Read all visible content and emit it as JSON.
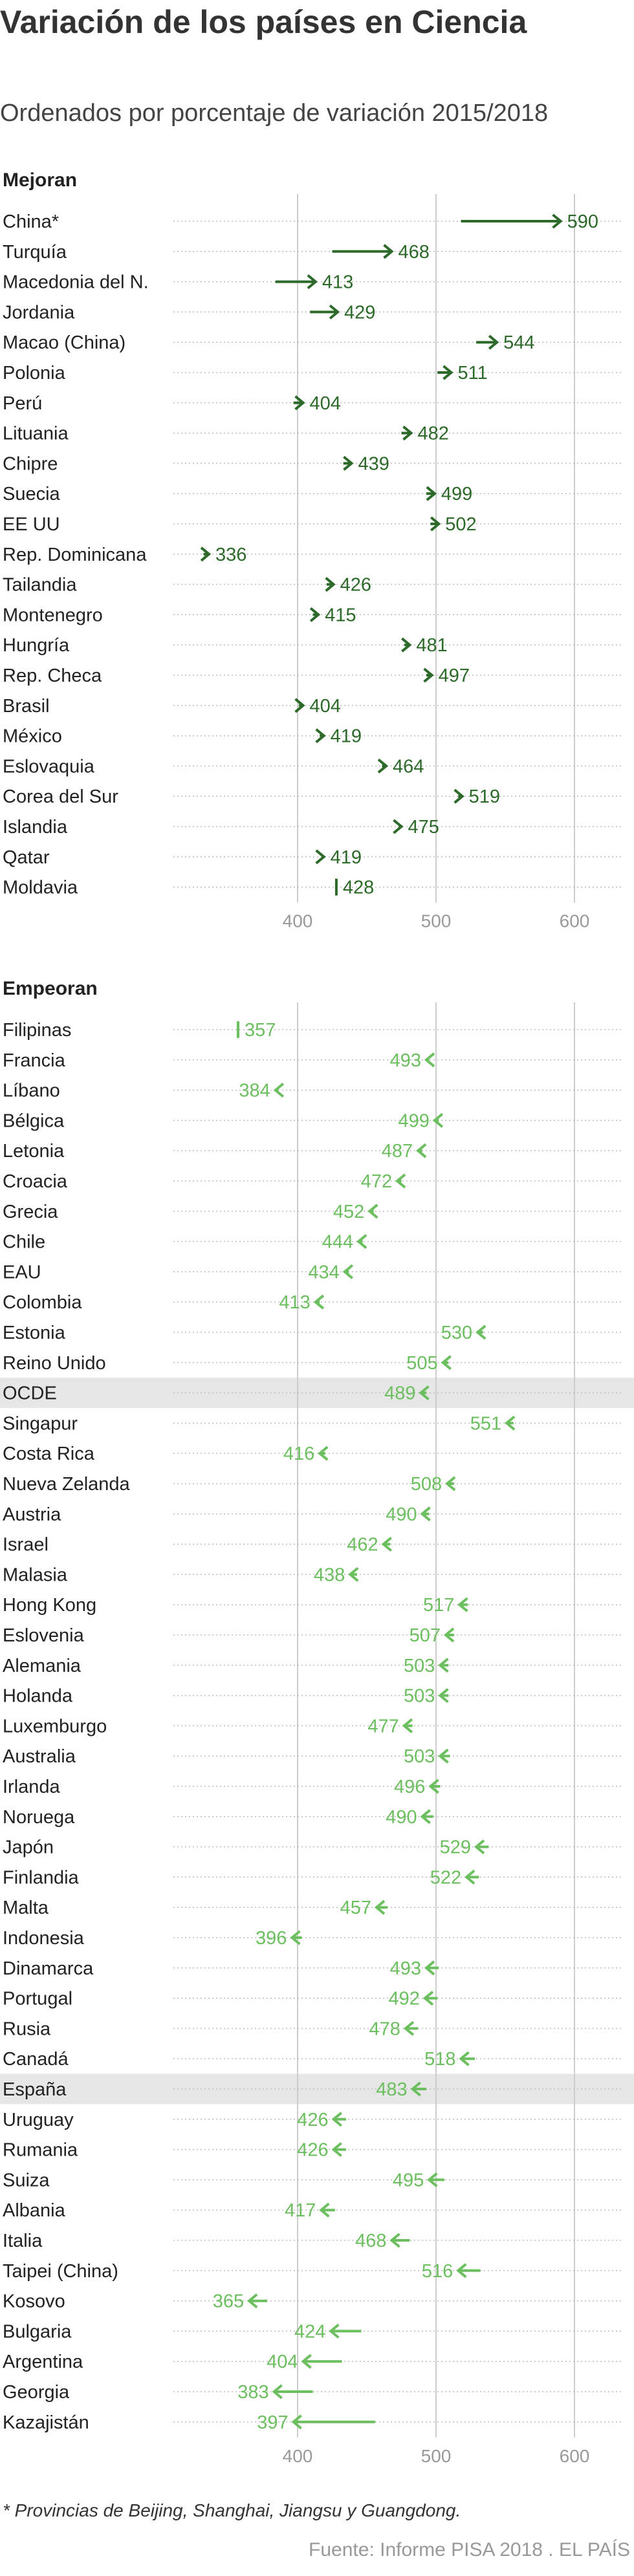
{
  "title": "Variación de los países en Ciencia",
  "subtitle": "Ordenados por porcentaje de variación 2015/2018",
  "footnote": "* Provincias de Beijing, Shanghai, Jiangsu y Guangdong.",
  "source": "Fuente: Informe PISA 2018 . EL PAÍS",
  "colors": {
    "improve": "#2d6a2a",
    "worsen": "#6cbf5f",
    "highlight_band": "#e6e6e6",
    "grid": "#cccccc",
    "dotted": "#bdbdbd"
  },
  "chart_data": [
    {
      "type": "dumbbell",
      "title": "Mejoran",
      "series": [
        {
          "name": "2015"
        },
        {
          "name": "2018"
        }
      ],
      "xlim": [
        340,
        640
      ],
      "x_ticks": [
        400,
        500,
        600
      ],
      "rows": [
        {
          "label": "China*",
          "from": 518,
          "to": 590
        },
        {
          "label": "Turquía",
          "from": 425,
          "to": 468
        },
        {
          "label": "Macedonia del N.",
          "from": 384,
          "to": 413
        },
        {
          "label": "Jordania",
          "from": 409,
          "to": 429
        },
        {
          "label": "Macao (China)",
          "from": 529,
          "to": 544
        },
        {
          "label": "Polonia",
          "from": 501,
          "to": 511
        },
        {
          "label": "Perú",
          "from": 397,
          "to": 404
        },
        {
          "label": "Lituania",
          "from": 475,
          "to": 482
        },
        {
          "label": "Chipre",
          "from": 433,
          "to": 439
        },
        {
          "label": "Suecia",
          "from": 493,
          "to": 499
        },
        {
          "label": "EE UU",
          "from": 496,
          "to": 502
        },
        {
          "label": "Rep. Dominicana",
          "from": 332,
          "to": 336
        },
        {
          "label": "Tailandia",
          "from": 421,
          "to": 426
        },
        {
          "label": "Montenegro",
          "from": 411,
          "to": 415
        },
        {
          "label": "Hungría",
          "from": 477,
          "to": 481
        },
        {
          "label": "Rep. Checa",
          "from": 493,
          "to": 497
        },
        {
          "label": "Brasil",
          "from": 401,
          "to": 404
        },
        {
          "label": "México",
          "from": 416,
          "to": 419
        },
        {
          "label": "Eslovaquia",
          "from": 461,
          "to": 464
        },
        {
          "label": "Corea del Sur",
          "from": 516,
          "to": 519
        },
        {
          "label": "Islandia",
          "from": 473,
          "to": 475
        },
        {
          "label": "Qatar",
          "from": 418,
          "to": 419
        },
        {
          "label": "Moldavia",
          "from": 428,
          "to": 428
        }
      ]
    },
    {
      "type": "dumbbell",
      "title": "Empeoran",
      "series": [
        {
          "name": "2015"
        },
        {
          "name": "2018"
        }
      ],
      "xlim": [
        340,
        640
      ],
      "x_ticks": [
        400,
        500,
        600
      ],
      "rows": [
        {
          "label": "Filipinas",
          "from": 357,
          "to": 357
        },
        {
          "label": "Francia",
          "from": 495,
          "to": 493
        },
        {
          "label": "Líbano",
          "from": 386,
          "to": 384
        },
        {
          "label": "Bélgica",
          "from": 502,
          "to": 499
        },
        {
          "label": "Letonia",
          "from": 490,
          "to": 487
        },
        {
          "label": "Croacia",
          "from": 475,
          "to": 472
        },
        {
          "label": "Grecia",
          "from": 455,
          "to": 452
        },
        {
          "label": "Chile",
          "from": 447,
          "to": 444
        },
        {
          "label": "EAU",
          "from": 437,
          "to": 434
        },
        {
          "label": "Colombia",
          "from": 416,
          "to": 413
        },
        {
          "label": "Estonia",
          "from": 534,
          "to": 530
        },
        {
          "label": "Reino Unido",
          "from": 509,
          "to": 505
        },
        {
          "label": "OCDE",
          "from": 493,
          "to": 489,
          "highlight": true
        },
        {
          "label": "Singapur",
          "from": 556,
          "to": 551
        },
        {
          "label": "Costa Rica",
          "from": 420,
          "to": 416
        },
        {
          "label": "Nueva Zelanda",
          "from": 513,
          "to": 508
        },
        {
          "label": "Austria",
          "from": 495,
          "to": 490
        },
        {
          "label": "Israel",
          "from": 467,
          "to": 462
        },
        {
          "label": "Malasia",
          "from": 443,
          "to": 438
        },
        {
          "label": "Hong Kong",
          "from": 523,
          "to": 517
        },
        {
          "label": "Eslovenia",
          "from": 513,
          "to": 507
        },
        {
          "label": "Alemania",
          "from": 509,
          "to": 503
        },
        {
          "label": "Holanda",
          "from": 509,
          "to": 503
        },
        {
          "label": "Luxemburgo",
          "from": 483,
          "to": 477
        },
        {
          "label": "Australia",
          "from": 510,
          "to": 503
        },
        {
          "label": "Irlanda",
          "from": 503,
          "to": 496
        },
        {
          "label": "Noruega",
          "from": 498,
          "to": 490
        },
        {
          "label": "Japón",
          "from": 538,
          "to": 529
        },
        {
          "label": "Finlandia",
          "from": 531,
          "to": 522
        },
        {
          "label": "Malta",
          "from": 465,
          "to": 457
        },
        {
          "label": "Indonesia",
          "from": 403,
          "to": 396
        },
        {
          "label": "Dinamarca",
          "from": 502,
          "to": 493
        },
        {
          "label": "Portugal",
          "from": 501,
          "to": 492
        },
        {
          "label": "Rusia",
          "from": 487,
          "to": 478
        },
        {
          "label": "Canadá",
          "from": 528,
          "to": 518
        },
        {
          "label": "España",
          "from": 493,
          "to": 483,
          "highlight": true
        },
        {
          "label": "Uruguay",
          "from": 435,
          "to": 426
        },
        {
          "label": "Rumania",
          "from": 435,
          "to": 426
        },
        {
          "label": "Suiza",
          "from": 506,
          "to": 495
        },
        {
          "label": "Albania",
          "from": 427,
          "to": 417
        },
        {
          "label": "Italia",
          "from": 481,
          "to": 468
        },
        {
          "label": "Taipei (China)",
          "from": 532,
          "to": 516
        },
        {
          "label": "Kosovo",
          "from": 378,
          "to": 365
        },
        {
          "label": "Bulgaria",
          "from": 446,
          "to": 424
        },
        {
          "label": "Argentina",
          "from": 432,
          "to": 404
        },
        {
          "label": "Georgia",
          "from": 411,
          "to": 383
        },
        {
          "label": "Kazajistán",
          "from": 456,
          "to": 397
        }
      ]
    }
  ]
}
